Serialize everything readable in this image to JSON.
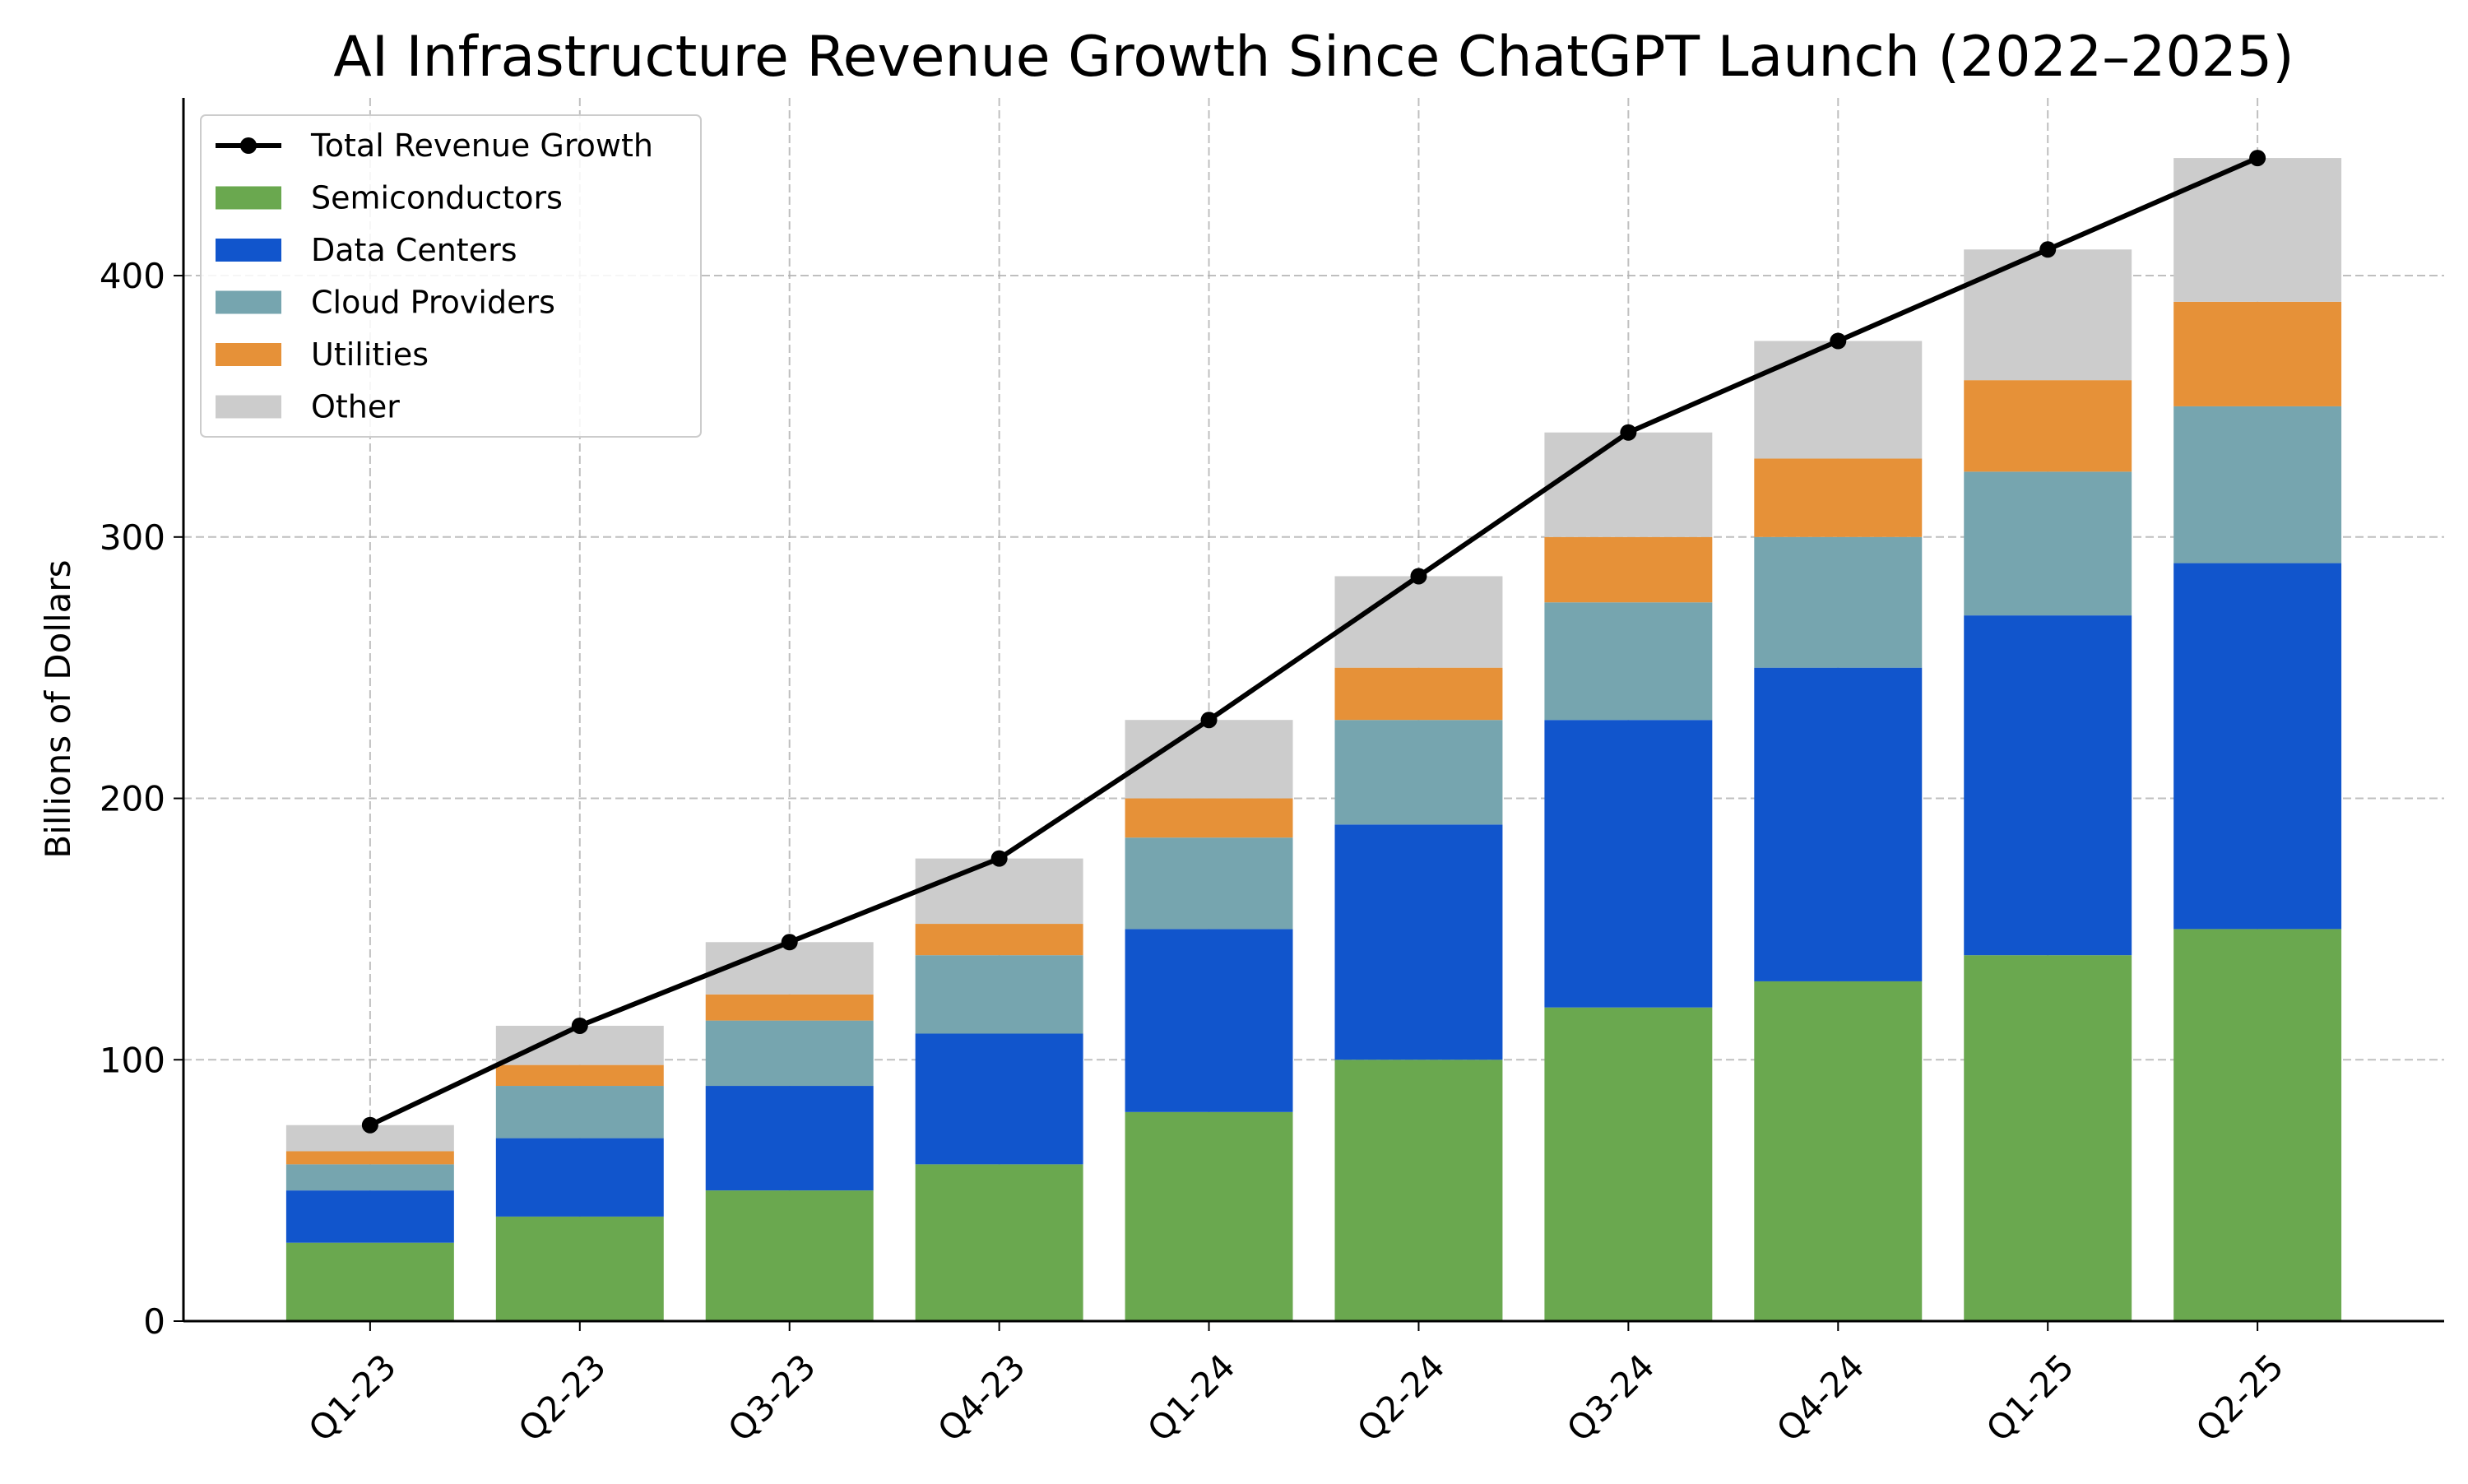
{
  "chart_data": {
    "type": "bar",
    "stacked": true,
    "title": "AI Infrastructure Revenue Growth Since ChatGPT Launch (2022–2025)",
    "xlabel": "",
    "ylabel": "Billions of Dollars",
    "ylim": [
      0,
      468
    ],
    "xlim": [
      -0.89,
      9.89
    ],
    "yticks": [
      0,
      100,
      200,
      300,
      400
    ],
    "grid": true,
    "legend_position": "top-left",
    "categories": [
      "Q1-23",
      "Q2-23",
      "Q3-23",
      "Q4-23",
      "Q1-24",
      "Q2-24",
      "Q3-24",
      "Q4-24",
      "Q1-25",
      "Q2-25"
    ],
    "series": [
      {
        "name": "Semiconductors",
        "color": "#6aa84f",
        "values": [
          30,
          40,
          50,
          60,
          80,
          100,
          120,
          130,
          140,
          150
        ]
      },
      {
        "name": "Data Centers",
        "color": "#1155cc",
        "values": [
          20,
          30,
          40,
          50,
          70,
          90,
          110,
          120,
          130,
          140
        ]
      },
      {
        "name": "Cloud Providers",
        "color": "#76a5af",
        "values": [
          10,
          20,
          25,
          30,
          35,
          40,
          45,
          50,
          55,
          60
        ]
      },
      {
        "name": "Utilities",
        "color": "#e69138",
        "values": [
          5,
          8,
          10,
          12,
          15,
          20,
          25,
          30,
          35,
          40
        ]
      },
      {
        "name": "Other",
        "color": "#cccccc",
        "values": [
          10,
          15,
          20,
          25,
          30,
          35,
          40,
          45,
          50,
          55
        ]
      }
    ],
    "line": {
      "name": "Total Revenue Growth",
      "color": "#000000",
      "values": [
        75,
        113,
        145,
        177,
        230,
        285,
        340,
        375,
        410,
        445
      ]
    }
  }
}
